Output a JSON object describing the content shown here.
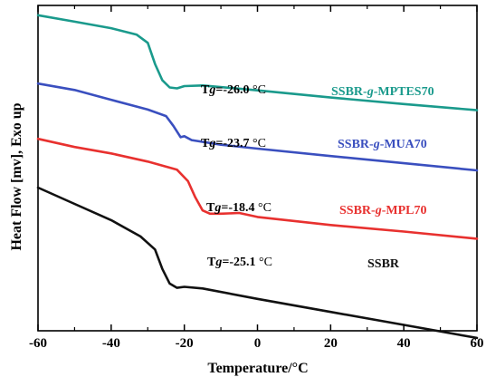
{
  "chart_data": {
    "type": "line",
    "xlabel": "Temperature/°C",
    "ylabel": "Heat Flow [mv], Exo up",
    "xlim": [
      -60,
      60
    ],
    "xticks": [
      -60,
      -40,
      -20,
      0,
      20,
      40,
      60
    ],
    "y_tick_labels_shown": false,
    "grid": false,
    "series": [
      {
        "name": "SSBR-g-MPTES70",
        "name_parts": [
          "SSBR-",
          "g",
          "-MPTES70"
        ],
        "color": "#1a9a8c",
        "tg_label": {
          "prefix": "T",
          "italic": "g",
          "suffix": "=-26.0 °C"
        },
        "x": [
          -60,
          -50,
          -40,
          -33,
          -30,
          -28,
          -26,
          -24,
          -22,
          -20,
          -15,
          0,
          20,
          40,
          60
        ],
        "y": [
          0.97,
          0.95,
          0.93,
          0.91,
          0.885,
          0.82,
          0.77,
          0.748,
          0.745,
          0.752,
          0.754,
          0.739,
          0.717,
          0.697,
          0.678
        ]
      },
      {
        "name": "SSBR-g-MUA70",
        "name_parts": [
          "SSBR-",
          "g",
          "-MUA70"
        ],
        "color": "#3a4fbf",
        "tg_label": {
          "prefix": "T",
          "italic": "g",
          "suffix": "=-23.7 °C"
        },
        "x": [
          -60,
          -50,
          -40,
          -30,
          -25,
          -23,
          -21,
          -20,
          -18,
          -10,
          0,
          20,
          40,
          60
        ],
        "y": [
          0.76,
          0.74,
          0.71,
          0.68,
          0.66,
          0.63,
          0.595,
          0.598,
          0.586,
          0.572,
          0.56,
          0.537,
          0.515,
          0.493
        ]
      },
      {
        "name": "SSBR-g-MPL70",
        "name_parts": [
          "SSBR-",
          "g",
          "-MPL70"
        ],
        "color": "#e8312f",
        "tg_label": {
          "prefix": "T",
          "italic": "g",
          "suffix": "=-18.4 °C"
        },
        "x": [
          -60,
          -50,
          -40,
          -30,
          -22,
          -19,
          -17,
          -15,
          -13,
          -10,
          -5,
          0,
          20,
          40,
          60
        ],
        "y": [
          0.59,
          0.565,
          0.545,
          0.52,
          0.495,
          0.46,
          0.41,
          0.37,
          0.36,
          0.36,
          0.362,
          0.35,
          0.325,
          0.305,
          0.283
        ]
      },
      {
        "name": "SSBR",
        "name_parts": [
          "SSBR",
          "",
          ""
        ],
        "color": "#111111",
        "tg_label": {
          "prefix": "T",
          "italic": "g",
          "suffix": "=-25.1 °C"
        },
        "x": [
          -60,
          -50,
          -40,
          -32,
          -28,
          -26,
          -24,
          -22,
          -20,
          -15,
          0,
          20,
          40,
          60
        ],
        "y": [
          0.44,
          0.39,
          0.34,
          0.29,
          0.25,
          0.19,
          0.145,
          0.132,
          0.135,
          0.13,
          0.098,
          0.058,
          0.018,
          -0.022
        ]
      }
    ]
  }
}
